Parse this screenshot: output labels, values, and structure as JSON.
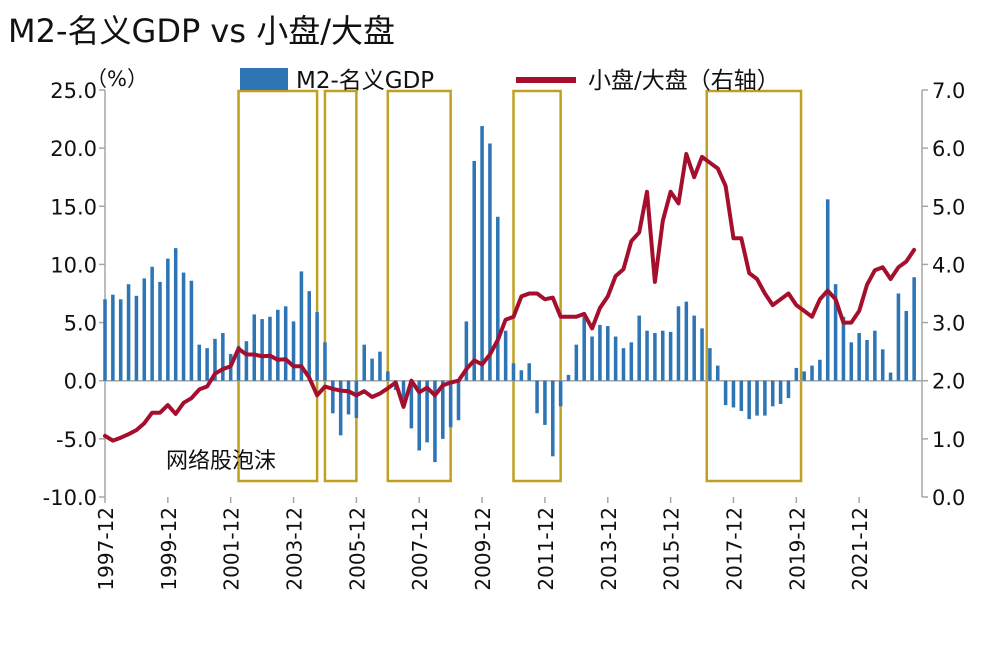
{
  "chart_data": {
    "type": "bar+line",
    "title": "M2-名义GDP vs 小盘/大盘",
    "y_left_unit": "（%）",
    "y_left_lim": [
      -10,
      25
    ],
    "y_left_ticks": [
      "25.0",
      "20.0",
      "15.0",
      "10.0",
      "5.0",
      "0.0",
      "-5.0",
      "-10.0"
    ],
    "y_right_lim": [
      0,
      7
    ],
    "y_right_ticks": [
      "7.0",
      "6.0",
      "5.0",
      "4.0",
      "3.0",
      "2.0",
      "1.0",
      "0.0"
    ],
    "x_start": 1997.75,
    "x_end": 2023.75,
    "x_tick_labels": [
      {
        "label": "1997-12",
        "t": 1997.75
      },
      {
        "label": "1999-12",
        "t": 1999.75
      },
      {
        "label": "2001-12",
        "t": 2001.75
      },
      {
        "label": "2003-12",
        "t": 2003.75
      },
      {
        "label": "2005-12",
        "t": 2005.75
      },
      {
        "label": "2007-12",
        "t": 2007.75
      },
      {
        "label": "2009-12",
        "t": 2009.75
      },
      {
        "label": "2011-12",
        "t": 2011.75
      },
      {
        "label": "2013-12",
        "t": 2013.75
      },
      {
        "label": "2015-12",
        "t": 2015.75
      },
      {
        "label": "2017-12",
        "t": 2017.75
      },
      {
        "label": "2019-12",
        "t": 2019.75
      },
      {
        "label": "2021-12",
        "t": 2021.75
      }
    ],
    "legend": {
      "bar_label": "M2-名义GDP",
      "line_label": "小盘/大盘（右轴）"
    },
    "annotation": "网络股泡沫",
    "colors": {
      "bar": "#2e75b6",
      "line": "#a50f2d",
      "highlight_box": "#c0a020",
      "axis": "#a6a6a6"
    },
    "series": [
      {
        "name": "M2-名义GDP",
        "type": "bar",
        "axis": "left",
        "points": [
          {
            "t": 1997.75,
            "v": 7.0
          },
          {
            "t": 1998.0,
            "v": 7.4
          },
          {
            "t": 1998.25,
            "v": 7.0
          },
          {
            "t": 1998.5,
            "v": 8.3
          },
          {
            "t": 1998.75,
            "v": 7.3
          },
          {
            "t": 1999.0,
            "v": 8.8
          },
          {
            "t": 1999.25,
            "v": 9.8
          },
          {
            "t": 1999.5,
            "v": 8.5
          },
          {
            "t": 1999.75,
            "v": 10.5
          },
          {
            "t": 2000.0,
            "v": 11.4
          },
          {
            "t": 2000.25,
            "v": 9.3
          },
          {
            "t": 2000.5,
            "v": 8.6
          },
          {
            "t": 2000.75,
            "v": 3.1
          },
          {
            "t": 2001.0,
            "v": 2.8
          },
          {
            "t": 2001.25,
            "v": 3.6
          },
          {
            "t": 2001.5,
            "v": 4.1
          },
          {
            "t": 2001.75,
            "v": 2.3
          },
          {
            "t": 2002.0,
            "v": 3.0
          },
          {
            "t": 2002.25,
            "v": 3.4
          },
          {
            "t": 2002.5,
            "v": 5.7
          },
          {
            "t": 2002.75,
            "v": 5.3
          },
          {
            "t": 2003.0,
            "v": 5.5
          },
          {
            "t": 2003.25,
            "v": 6.1
          },
          {
            "t": 2003.5,
            "v": 6.4
          },
          {
            "t": 2003.75,
            "v": 5.1
          },
          {
            "t": 2004.0,
            "v": 9.4
          },
          {
            "t": 2004.25,
            "v": 7.7
          },
          {
            "t": 2004.5,
            "v": 5.9
          },
          {
            "t": 2004.75,
            "v": 3.3
          },
          {
            "t": 2005.0,
            "v": -2.8
          },
          {
            "t": 2005.25,
            "v": -4.7
          },
          {
            "t": 2005.5,
            "v": -2.9
          },
          {
            "t": 2005.75,
            "v": -3.2
          },
          {
            "t": 2006.0,
            "v": 3.1
          },
          {
            "t": 2006.25,
            "v": 1.9
          },
          {
            "t": 2006.5,
            "v": 2.5
          },
          {
            "t": 2006.75,
            "v": 0.8
          },
          {
            "t": 2007.0,
            "v": -0.8
          },
          {
            "t": 2007.25,
            "v": -2.0
          },
          {
            "t": 2007.5,
            "v": -4.1
          },
          {
            "t": 2007.75,
            "v": -6.0
          },
          {
            "t": 2008.0,
            "v": -5.3
          },
          {
            "t": 2008.25,
            "v": -7.0
          },
          {
            "t": 2008.5,
            "v": -5.0
          },
          {
            "t": 2008.75,
            "v": -4.0
          },
          {
            "t": 2009.0,
            "v": -3.4
          },
          {
            "t": 2009.25,
            "v": 5.1
          },
          {
            "t": 2009.5,
            "v": 18.9
          },
          {
            "t": 2009.75,
            "v": 21.9
          },
          {
            "t": 2010.0,
            "v": 20.4
          },
          {
            "t": 2010.25,
            "v": 14.1
          },
          {
            "t": 2010.5,
            "v": 4.3
          },
          {
            "t": 2010.75,
            "v": 1.5
          },
          {
            "t": 2011.0,
            "v": 0.9
          },
          {
            "t": 2011.25,
            "v": 1.5
          },
          {
            "t": 2011.5,
            "v": -2.8
          },
          {
            "t": 2011.75,
            "v": -3.8
          },
          {
            "t": 2012.0,
            "v": -6.5
          },
          {
            "t": 2012.25,
            "v": -2.2
          },
          {
            "t": 2012.5,
            "v": 0.5
          },
          {
            "t": 2012.75,
            "v": 3.1
          },
          {
            "t": 2013.0,
            "v": 5.5
          },
          {
            "t": 2013.25,
            "v": 3.8
          },
          {
            "t": 2013.5,
            "v": 4.8
          },
          {
            "t": 2013.75,
            "v": 4.7
          },
          {
            "t": 2014.0,
            "v": 3.8
          },
          {
            "t": 2014.25,
            "v": 2.8
          },
          {
            "t": 2014.5,
            "v": 3.3
          },
          {
            "t": 2014.75,
            "v": 5.6
          },
          {
            "t": 2015.0,
            "v": 4.3
          },
          {
            "t": 2015.25,
            "v": 4.1
          },
          {
            "t": 2015.5,
            "v": 4.3
          },
          {
            "t": 2015.75,
            "v": 4.2
          },
          {
            "t": 2016.0,
            "v": 6.4
          },
          {
            "t": 2016.25,
            "v": 6.8
          },
          {
            "t": 2016.5,
            "v": 5.6
          },
          {
            "t": 2016.75,
            "v": 4.5
          },
          {
            "t": 2017.0,
            "v": 2.8
          },
          {
            "t": 2017.25,
            "v": 1.3
          },
          {
            "t": 2017.5,
            "v": -2.1
          },
          {
            "t": 2017.75,
            "v": -2.3
          },
          {
            "t": 2018.0,
            "v": -2.6
          },
          {
            "t": 2018.25,
            "v": -3.3
          },
          {
            "t": 2018.5,
            "v": -3.0
          },
          {
            "t": 2018.75,
            "v": -3.0
          },
          {
            "t": 2019.0,
            "v": -2.2
          },
          {
            "t": 2019.25,
            "v": -2.0
          },
          {
            "t": 2019.5,
            "v": -1.5
          },
          {
            "t": 2019.75,
            "v": 1.1
          },
          {
            "t": 2020.0,
            "v": 0.8
          },
          {
            "t": 2020.25,
            "v": 1.3
          },
          {
            "t": 2020.5,
            "v": 1.8
          },
          {
            "t": 2020.75,
            "v": 15.6
          },
          {
            "t": 2021.0,
            "v": 8.3
          },
          {
            "t": 2021.25,
            "v": 5.5
          },
          {
            "t": 2021.5,
            "v": 3.3
          },
          {
            "t": 2021.75,
            "v": 4.1
          },
          {
            "t": 2022.0,
            "v": 3.5
          },
          {
            "t": 2022.25,
            "v": 4.3
          },
          {
            "t": 2022.5,
            "v": 2.7
          },
          {
            "t": 2022.75,
            "v": 0.7
          },
          {
            "t": 2023.0,
            "v": 7.5
          },
          {
            "t": 2023.25,
            "v": 6.0
          },
          {
            "t": 2023.5,
            "v": 8.9
          }
        ]
      },
      {
        "name": "小盘/大盘（右轴）",
        "type": "line",
        "axis": "right",
        "points": [
          {
            "t": 1997.75,
            "v": 1.05
          },
          {
            "t": 1998.0,
            "v": 0.97
          },
          {
            "t": 1998.25,
            "v": 1.02
          },
          {
            "t": 1998.5,
            "v": 1.08
          },
          {
            "t": 1998.75,
            "v": 1.15
          },
          {
            "t": 1999.0,
            "v": 1.27
          },
          {
            "t": 1999.25,
            "v": 1.45
          },
          {
            "t": 1999.5,
            "v": 1.45
          },
          {
            "t": 1999.75,
            "v": 1.58
          },
          {
            "t": 2000.0,
            "v": 1.43
          },
          {
            "t": 2000.25,
            "v": 1.62
          },
          {
            "t": 2000.5,
            "v": 1.7
          },
          {
            "t": 2000.75,
            "v": 1.85
          },
          {
            "t": 2001.0,
            "v": 1.9
          },
          {
            "t": 2001.25,
            "v": 2.12
          },
          {
            "t": 2001.5,
            "v": 2.2
          },
          {
            "t": 2001.75,
            "v": 2.25
          },
          {
            "t": 2002.0,
            "v": 2.55
          },
          {
            "t": 2002.25,
            "v": 2.45
          },
          {
            "t": 2002.5,
            "v": 2.45
          },
          {
            "t": 2002.75,
            "v": 2.42
          },
          {
            "t": 2003.0,
            "v": 2.43
          },
          {
            "t": 2003.25,
            "v": 2.36
          },
          {
            "t": 2003.5,
            "v": 2.37
          },
          {
            "t": 2003.75,
            "v": 2.25
          },
          {
            "t": 2004.0,
            "v": 2.25
          },
          {
            "t": 2004.25,
            "v": 2.05
          },
          {
            "t": 2004.5,
            "v": 1.75
          },
          {
            "t": 2004.75,
            "v": 1.9
          },
          {
            "t": 2005.0,
            "v": 1.86
          },
          {
            "t": 2005.25,
            "v": 1.83
          },
          {
            "t": 2005.5,
            "v": 1.82
          },
          {
            "t": 2005.75,
            "v": 1.75
          },
          {
            "t": 2006.0,
            "v": 1.82
          },
          {
            "t": 2006.25,
            "v": 1.72
          },
          {
            "t": 2006.5,
            "v": 1.78
          },
          {
            "t": 2006.75,
            "v": 1.87
          },
          {
            "t": 2007.0,
            "v": 1.97
          },
          {
            "t": 2007.25,
            "v": 1.55
          },
          {
            "t": 2007.5,
            "v": 2.0
          },
          {
            "t": 2007.75,
            "v": 1.8
          },
          {
            "t": 2008.0,
            "v": 1.88
          },
          {
            "t": 2008.25,
            "v": 1.75
          },
          {
            "t": 2008.5,
            "v": 1.92
          },
          {
            "t": 2008.75,
            "v": 1.97
          },
          {
            "t": 2009.0,
            "v": 2.0
          },
          {
            "t": 2009.25,
            "v": 2.2
          },
          {
            "t": 2009.5,
            "v": 2.35
          },
          {
            "t": 2009.75,
            "v": 2.28
          },
          {
            "t": 2010.0,
            "v": 2.45
          },
          {
            "t": 2010.25,
            "v": 2.7
          },
          {
            "t": 2010.5,
            "v": 3.05
          },
          {
            "t": 2010.75,
            "v": 3.1
          },
          {
            "t": 2011.0,
            "v": 3.45
          },
          {
            "t": 2011.25,
            "v": 3.5
          },
          {
            "t": 2011.5,
            "v": 3.5
          },
          {
            "t": 2011.75,
            "v": 3.4
          },
          {
            "t": 2012.0,
            "v": 3.43
          },
          {
            "t": 2012.25,
            "v": 3.1
          },
          {
            "t": 2012.5,
            "v": 3.1
          },
          {
            "t": 2012.75,
            "v": 3.1
          },
          {
            "t": 2013.0,
            "v": 3.15
          },
          {
            "t": 2013.25,
            "v": 2.9
          },
          {
            "t": 2013.5,
            "v": 3.25
          },
          {
            "t": 2013.75,
            "v": 3.45
          },
          {
            "t": 2014.0,
            "v": 3.8
          },
          {
            "t": 2014.25,
            "v": 3.92
          },
          {
            "t": 2014.5,
            "v": 4.4
          },
          {
            "t": 2014.75,
            "v": 4.55
          },
          {
            "t": 2015.0,
            "v": 5.25
          },
          {
            "t": 2015.25,
            "v": 3.7
          },
          {
            "t": 2015.5,
            "v": 4.75
          },
          {
            "t": 2015.75,
            "v": 5.25
          },
          {
            "t": 2016.0,
            "v": 5.05
          },
          {
            "t": 2016.25,
            "v": 5.9
          },
          {
            "t": 2016.5,
            "v": 5.5
          },
          {
            "t": 2016.75,
            "v": 5.85
          },
          {
            "t": 2017.0,
            "v": 5.75
          },
          {
            "t": 2017.25,
            "v": 5.65
          },
          {
            "t": 2017.5,
            "v": 5.35
          },
          {
            "t": 2017.75,
            "v": 4.45
          },
          {
            "t": 2018.0,
            "v": 4.45
          },
          {
            "t": 2018.25,
            "v": 3.85
          },
          {
            "t": 2018.5,
            "v": 3.75
          },
          {
            "t": 2018.75,
            "v": 3.5
          },
          {
            "t": 2019.0,
            "v": 3.3
          },
          {
            "t": 2019.25,
            "v": 3.4
          },
          {
            "t": 2019.5,
            "v": 3.5
          },
          {
            "t": 2019.75,
            "v": 3.3
          },
          {
            "t": 2020.0,
            "v": 3.2
          },
          {
            "t": 2020.25,
            "v": 3.1
          },
          {
            "t": 2020.5,
            "v": 3.4
          },
          {
            "t": 2020.75,
            "v": 3.55
          },
          {
            "t": 2021.0,
            "v": 3.4
          },
          {
            "t": 2021.25,
            "v": 3.0
          },
          {
            "t": 2021.5,
            "v": 3.0
          },
          {
            "t": 2021.75,
            "v": 3.2
          },
          {
            "t": 2022.0,
            "v": 3.65
          },
          {
            "t": 2022.25,
            "v": 3.9
          },
          {
            "t": 2022.5,
            "v": 3.95
          },
          {
            "t": 2022.75,
            "v": 3.75
          },
          {
            "t": 2023.0,
            "v": 3.95
          },
          {
            "t": 2023.25,
            "v": 4.05
          },
          {
            "t": 2023.5,
            "v": 4.25
          }
        ]
      }
    ],
    "highlight_periods": [
      {
        "from": 2002.0,
        "to": 2004.5
      },
      {
        "from": 2004.75,
        "to": 2005.75
      },
      {
        "from": 2006.75,
        "to": 2008.75
      },
      {
        "from": 2010.75,
        "to": 2012.25
      },
      {
        "from": 2016.9,
        "to": 2019.9
      }
    ]
  }
}
